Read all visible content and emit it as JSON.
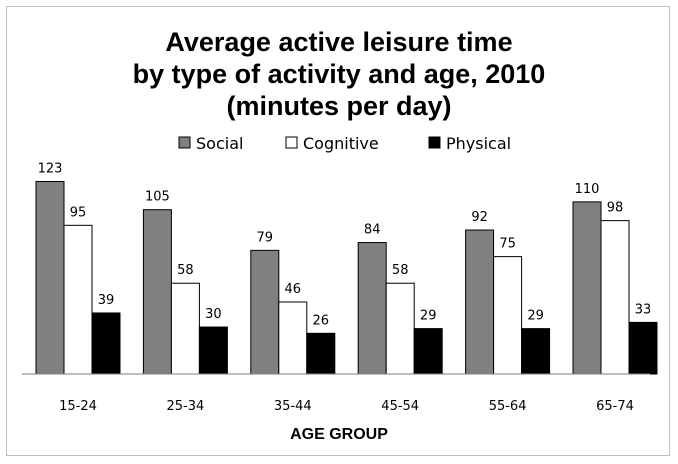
{
  "chart_data": {
    "type": "bar",
    "title_lines": [
      "Average active leisure time",
      "by type of activity and age, 2010",
      "(minutes per day)"
    ],
    "xlabel": "AGE GROUP",
    "ylabel": "",
    "categories": [
      "15-24",
      "25-34",
      "35-44",
      "45-54",
      "55-64",
      "65-74"
    ],
    "series": [
      {
        "name": "Social",
        "color": "#808080",
        "values": [
          123,
          105,
          79,
          84,
          92,
          110
        ]
      },
      {
        "name": "Cognitive",
        "color": "#ffffff",
        "values": [
          95,
          58,
          46,
          58,
          75,
          98
        ]
      },
      {
        "name": "Physical",
        "color": "#000000",
        "values": [
          39,
          30,
          26,
          29,
          29,
          33
        ]
      }
    ],
    "ylim": [
      0,
      130
    ],
    "grid": false,
    "legend": "top",
    "data_labels": true
  }
}
